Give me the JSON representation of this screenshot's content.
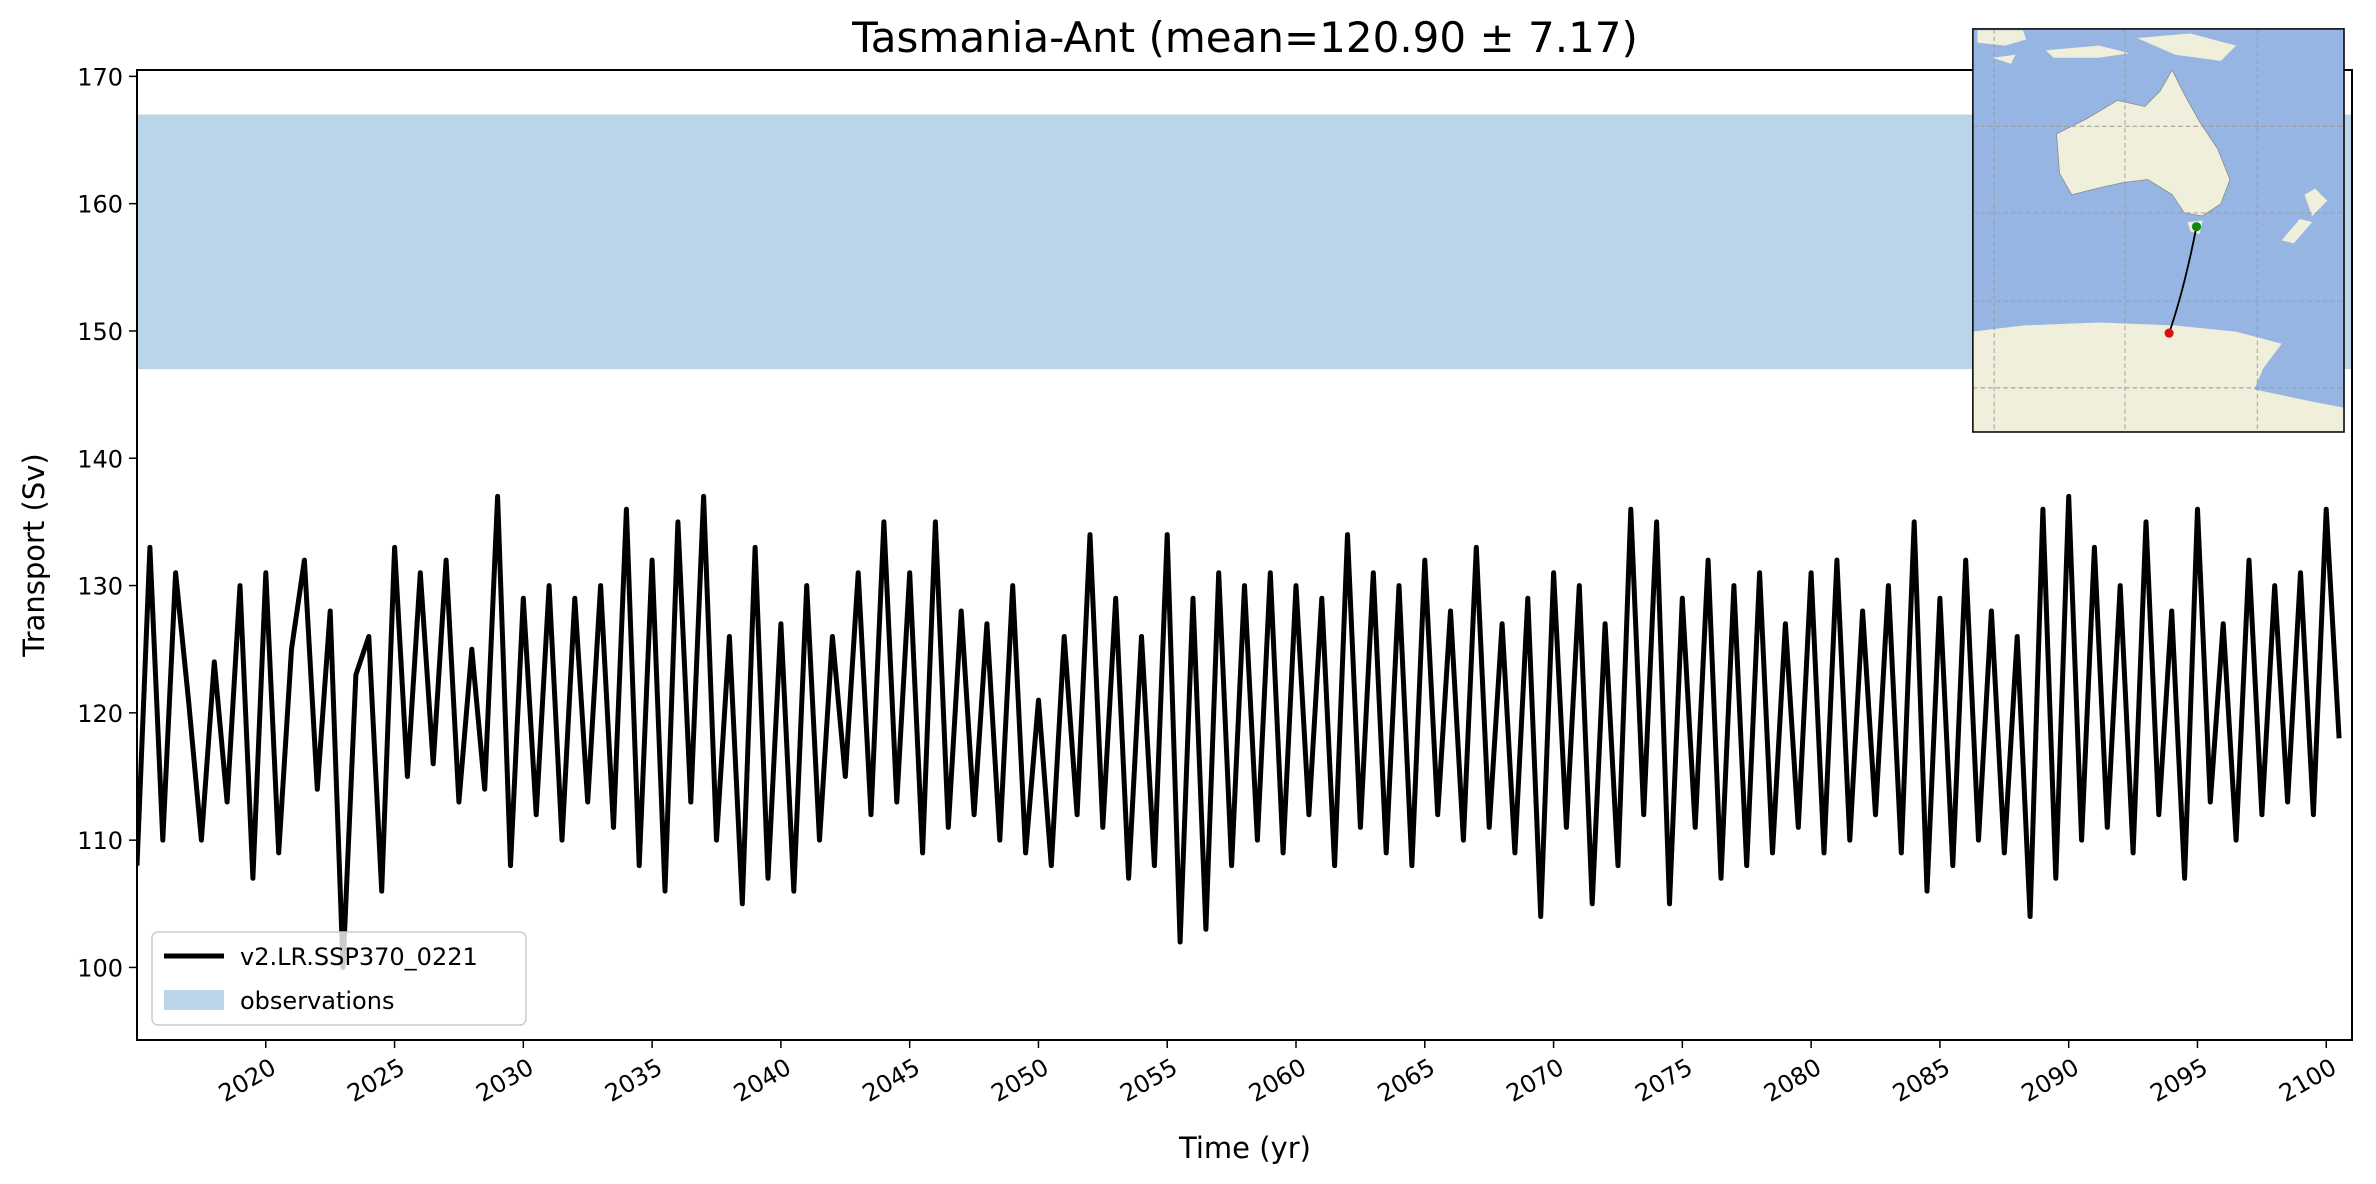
{
  "chart_data": {
    "type": "line",
    "title": "Tasmania-Ant (mean=120.90 ± 7.17)",
    "x_label": "Time (yr)",
    "y_label": "Transport (Sv)",
    "xlim": [
      2015,
      2101
    ],
    "ylim": [
      94.3,
      170.5
    ],
    "xticks": [
      2020,
      2025,
      2030,
      2035,
      2040,
      2045,
      2050,
      2055,
      2060,
      2065,
      2070,
      2075,
      2080,
      2085,
      2090,
      2095,
      2100
    ],
    "yticks": [
      100,
      110,
      120,
      130,
      140,
      150,
      160,
      170
    ],
    "legend": "lower left",
    "observations": {
      "name": "observations",
      "range": [
        147,
        167
      ],
      "color": "#bad5e7"
    },
    "x": [
      2015,
      2015.5,
      2016,
      2016.5,
      2017,
      2017.5,
      2018,
      2018.5,
      2019,
      2019.5,
      2020,
      2020.5,
      2021,
      2021.5,
      2022,
      2022.5,
      2023,
      2023.5,
      2024,
      2024.5,
      2025,
      2025.5,
      2026,
      2026.5,
      2027,
      2027.5,
      2028,
      2028.5,
      2029,
      2029.5,
      2030,
      2030.5,
      2031,
      2031.5,
      2032,
      2032.5,
      2033,
      2033.5,
      2034,
      2034.5,
      2035,
      2035.5,
      2036,
      2036.5,
      2037,
      2037.5,
      2038,
      2038.5,
      2039,
      2039.5,
      2040,
      2040.5,
      2041,
      2041.5,
      2042,
      2042.5,
      2043,
      2043.5,
      2044,
      2044.5,
      2045,
      2045.5,
      2046,
      2046.5,
      2047,
      2047.5,
      2048,
      2048.5,
      2049,
      2049.5,
      2050,
      2050.5,
      2051,
      2051.5,
      2052,
      2052.5,
      2053,
      2053.5,
      2054,
      2054.5,
      2055,
      2055.5,
      2056,
      2056.5,
      2057,
      2057.5,
      2058,
      2058.5,
      2059,
      2059.5,
      2060,
      2060.5,
      2061,
      2061.5,
      2062,
      2062.5,
      2063,
      2063.5,
      2064,
      2064.5,
      2065,
      2065.5,
      2066,
      2066.5,
      2067,
      2067.5,
      2068,
      2068.5,
      2069,
      2069.5,
      2070,
      2070.5,
      2071,
      2071.5,
      2072,
      2072.5,
      2073,
      2073.5,
      2074,
      2074.5,
      2075,
      2075.5,
      2076,
      2076.5,
      2077,
      2077.5,
      2078,
      2078.5,
      2079,
      2079.5,
      2080,
      2080.5,
      2081,
      2081.5,
      2082,
      2082.5,
      2083,
      2083.5,
      2084,
      2084.5,
      2085,
      2085.5,
      2086,
      2086.5,
      2087,
      2087.5,
      2088,
      2088.5,
      2089,
      2089.5,
      2090,
      2090.5,
      2091,
      2091.5,
      2092,
      2092.5,
      2093,
      2093.5,
      2094,
      2094.5,
      2095,
      2095.5,
      2096,
      2096.5,
      2097,
      2097.5,
      2098,
      2098.5,
      2099,
      2099.5,
      2100,
      2100.5
    ],
    "series": [
      {
        "name": "v2.LR.SSP370_0221",
        "color": "#000000",
        "values": [
          108,
          133,
          110,
          131,
          121,
          110,
          124,
          113,
          130,
          107,
          131,
          109,
          125,
          132,
          114,
          128,
          100,
          123,
          126,
          106,
          133,
          115,
          131,
          116,
          132,
          113,
          125,
          114,
          137,
          108,
          129,
          112,
          130,
          110,
          129,
          113,
          130,
          111,
          136,
          108,
          132,
          106,
          135,
          113,
          137,
          110,
          126,
          105,
          133,
          107,
          127,
          106,
          130,
          110,
          126,
          115,
          131,
          112,
          135,
          113,
          131,
          109,
          135,
          111,
          128,
          112,
          127,
          110,
          130,
          109,
          121,
          108,
          126,
          112,
          134,
          111,
          129,
          107,
          126,
          108,
          134,
          102,
          129,
          103,
          131,
          108,
          130,
          110,
          131,
          109,
          130,
          112,
          129,
          108,
          134,
          111,
          131,
          109,
          130,
          108,
          132,
          112,
          128,
          110,
          133,
          111,
          127,
          109,
          129,
          104,
          131,
          111,
          130,
          105,
          127,
          108,
          136,
          112,
          135,
          105,
          129,
          111,
          132,
          107,
          130,
          108,
          131,
          109,
          127,
          111,
          131,
          109,
          132,
          110,
          128,
          112,
          130,
          109,
          135,
          106,
          129,
          108,
          132,
          110,
          128,
          109,
          126,
          104,
          136,
          107,
          137,
          110,
          133,
          111,
          130,
          109,
          135,
          112,
          128,
          107,
          136,
          113,
          127,
          110,
          132,
          112,
          130,
          113,
          131,
          112,
          136,
          118
        ]
      }
    ]
  }
}
